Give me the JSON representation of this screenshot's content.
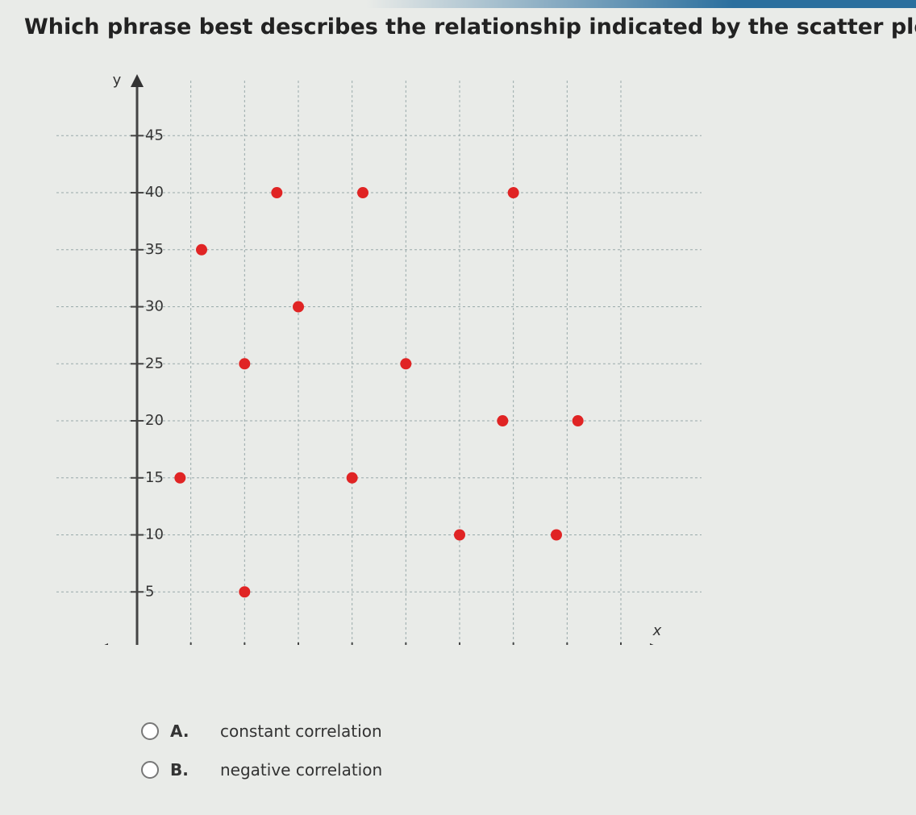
{
  "question": "Which phrase best describes the relationship indicated by the scatter plot?",
  "chart_data": {
    "type": "scatter",
    "x_label": "x",
    "y_label": "y",
    "x": [
      6,
      13,
      21,
      35,
      15,
      10,
      25,
      34,
      41,
      4,
      20,
      30,
      39,
      10
    ],
    "values": [
      35,
      40,
      40,
      40,
      30,
      25,
      25,
      20,
      20,
      15,
      15,
      10,
      10,
      5
    ],
    "color": "#e02424",
    "xlim": [
      0,
      48
    ],
    "ylim": [
      0,
      47
    ],
    "xticks": [
      5,
      10,
      15,
      20,
      25,
      30,
      35,
      40,
      45
    ],
    "yticks": [
      5,
      10,
      15,
      20,
      25,
      30,
      35,
      40,
      45
    ],
    "grid": true
  },
  "options": [
    {
      "letter": "A.",
      "text": "constant correlation"
    },
    {
      "letter": "B.",
      "text": "negative correlation"
    }
  ]
}
